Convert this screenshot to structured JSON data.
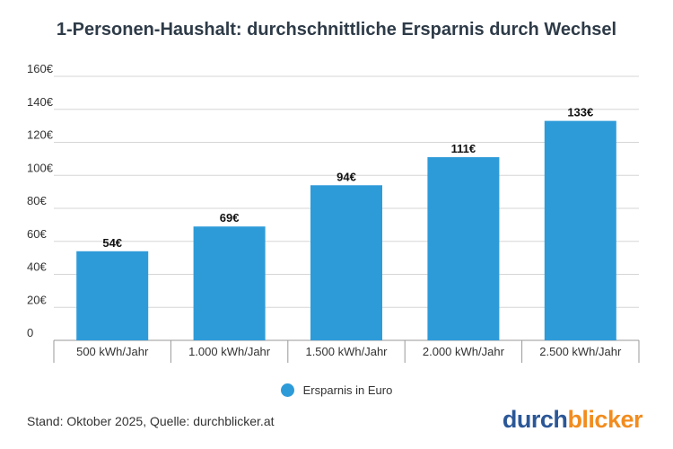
{
  "title": "1-Personen-Haushalt: durchschnittliche Ersparnis durch Wechsel",
  "chart_data": {
    "type": "bar",
    "categories": [
      "500 kWh/Jahr",
      "1.000 kWh/Jahr",
      "1.500 kWh/Jahr",
      "2.000 kWh/Jahr",
      "2.500 kWh/Jahr"
    ],
    "series": [
      {
        "name": "Ersparnis in Euro",
        "values": [
          54,
          69,
          94,
          111,
          133
        ],
        "color": "#2e9bd9"
      }
    ],
    "data_labels": [
      "54€",
      "69€",
      "94€",
      "111€",
      "133€"
    ],
    "yticks": [
      0,
      20,
      40,
      60,
      80,
      100,
      120,
      140,
      160
    ],
    "ytick_labels": [
      "0",
      "20€",
      "40€",
      "60€",
      "80€",
      "100€",
      "120€",
      "140€",
      "160€"
    ],
    "ylim": [
      0,
      160
    ],
    "grid": true,
    "legend": "bottom-center"
  },
  "legend": {
    "label": "Ersparnis in Euro",
    "color": "#2e9bd9"
  },
  "footer": {
    "source": "Stand: Oktober 2025, Quelle: durchblicker.at"
  },
  "logo": {
    "part1": "durch",
    "part2": "blicker"
  }
}
